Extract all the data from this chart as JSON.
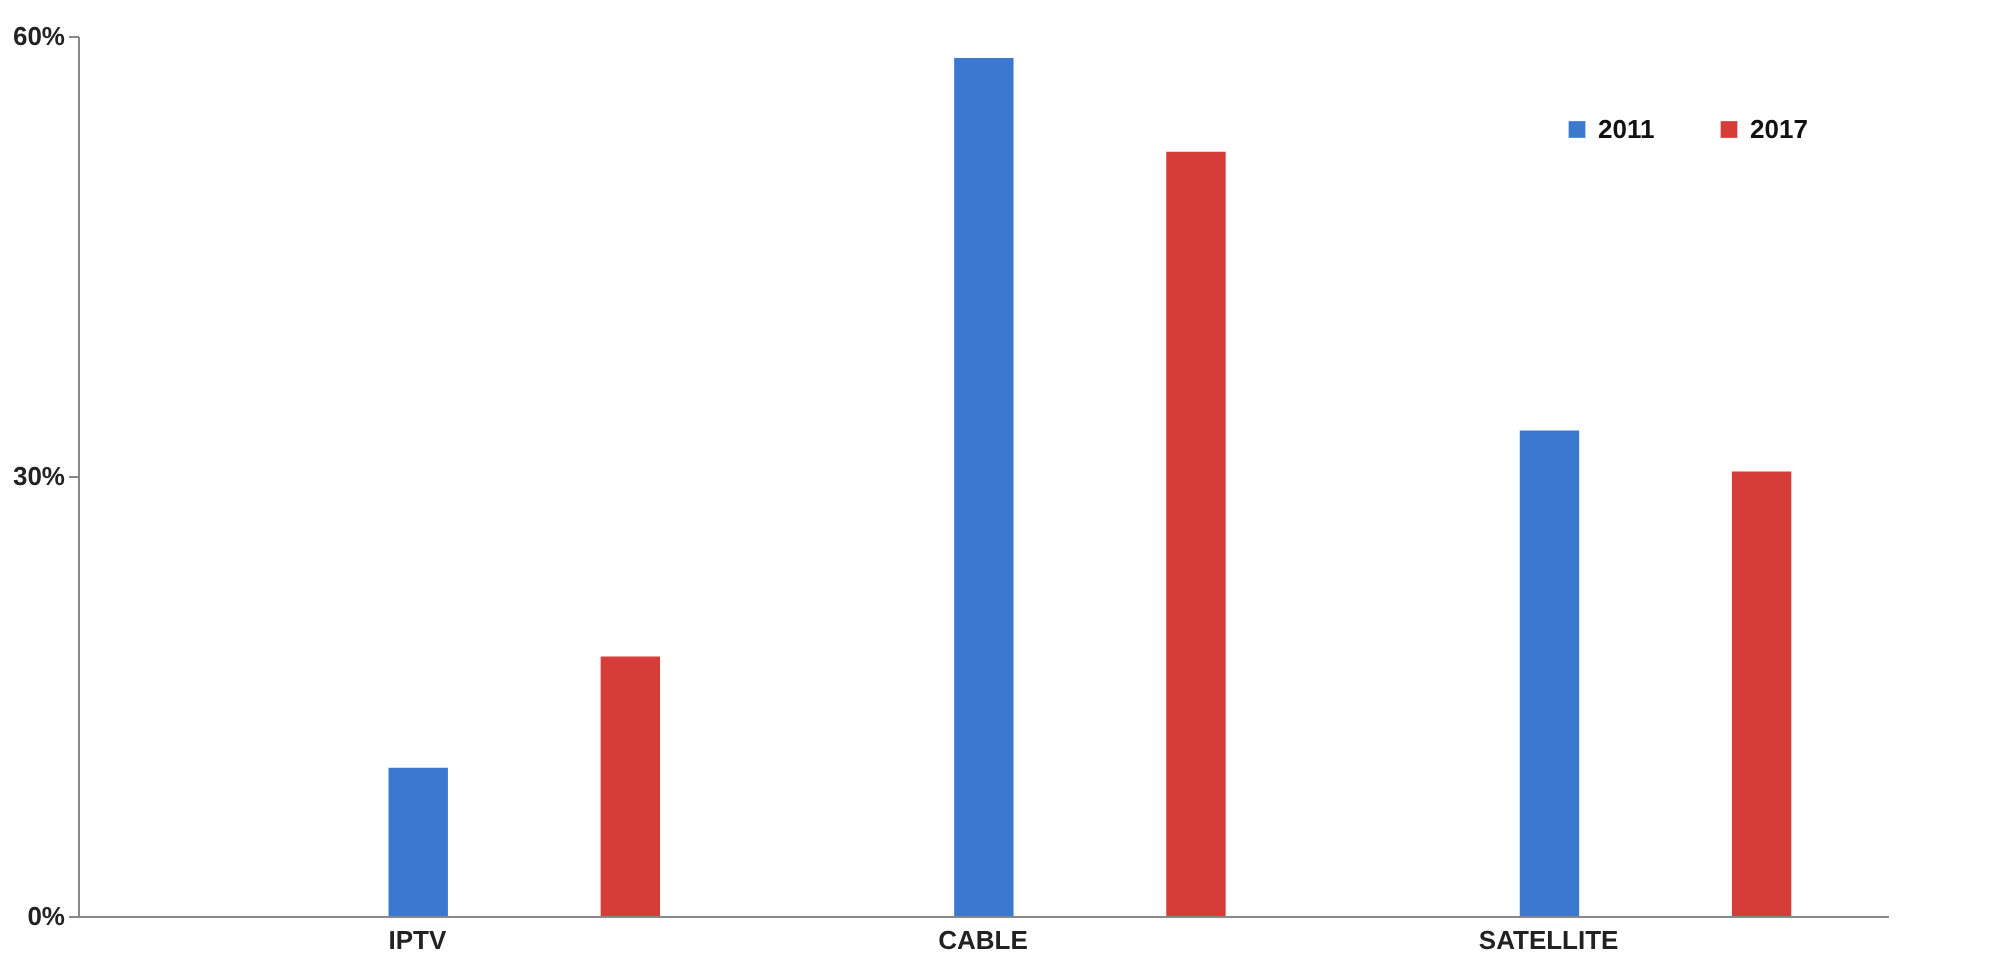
{
  "chart_data": {
    "type": "bar",
    "categories": [
      "IPTV",
      "CABLE",
      "SATELLITE"
    ],
    "series": [
      {
        "name": "2011",
        "color": "#3b78cf",
        "values": [
          10.1,
          58.5,
          33.1
        ]
      },
      {
        "name": "2017",
        "color": "#d63c38",
        "values": [
          17.7,
          52.1,
          30.3
        ]
      }
    ],
    "ylim": [
      0,
      60
    ],
    "yticks": [
      {
        "value": 0,
        "label": "0%"
      },
      {
        "value": 30,
        "label": "30%"
      },
      {
        "value": 60,
        "label": "60%"
      }
    ],
    "grid": false,
    "legend": "top right"
  }
}
